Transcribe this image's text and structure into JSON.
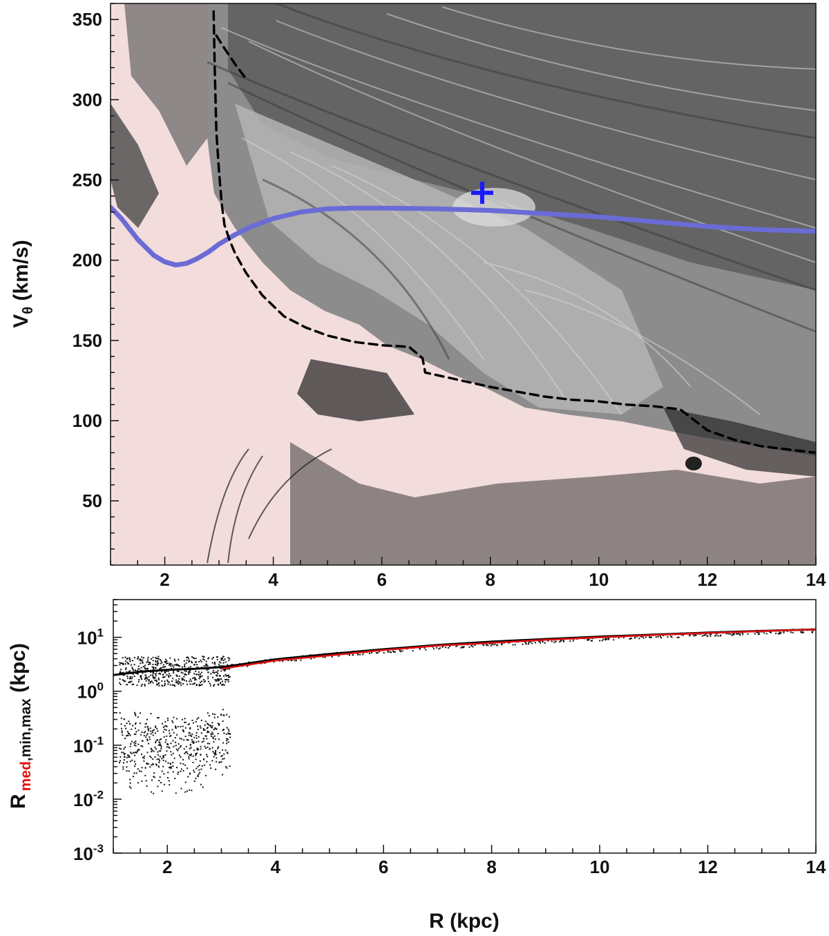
{
  "chart_data": [
    {
      "type": "scatter",
      "panel": "top",
      "xlabel": "",
      "ylabel": "V",
      "ylabel_sub": "θ",
      "ylabel_unit": " (km/s)",
      "xlim": [
        1,
        14
      ],
      "ylim": [
        10,
        360
      ],
      "x_ticks": [
        2,
        4,
        6,
        8,
        10,
        12,
        14
      ],
      "y_ticks": [
        50,
        100,
        150,
        200,
        250,
        300,
        350
      ],
      "background_color": "#f2dcdc",
      "series": [
        {
          "style": "solid",
          "color": "#6b6bd6",
          "x": [
            1.0,
            1.2,
            1.5,
            1.8,
            2.0,
            2.2,
            2.4,
            2.6,
            2.8,
            3.0,
            3.3,
            3.6,
            4.0,
            4.5,
            5.0,
            5.5,
            6.0,
            7.0,
            8.0,
            9.0,
            10.0,
            11.0,
            12.0,
            13.0,
            14.0
          ],
          "y": [
            233,
            226,
            213,
            203,
            199,
            197,
            198,
            201,
            205,
            210,
            216,
            221,
            226,
            230,
            232,
            232.5,
            232.5,
            232,
            231,
            229,
            227,
            224,
            221,
            219,
            218
          ]
        },
        {
          "style": "dashed",
          "color": "#000000",
          "x": [
            2.9,
            2.92,
            2.95,
            3.0,
            3.05,
            3.1,
            3.2,
            3.3,
            3.5,
            3.8,
            4.2,
            4.6,
            5.0,
            5.5,
            6.0,
            6.5,
            6.75,
            6.8,
            7.2,
            7.6,
            8.0,
            8.5,
            9.0,
            9.5,
            10.0,
            10.5,
            11.0,
            11.5,
            12.0,
            12.5,
            13.0,
            13.5,
            14.0
          ],
          "y": [
            355,
            320,
            280,
            255,
            235,
            222,
            212,
            204,
            192,
            178,
            165,
            158,
            153,
            149,
            147,
            146,
            139,
            130,
            127,
            124,
            121,
            118,
            115,
            113,
            112,
            110,
            109,
            107,
            94,
            88,
            84,
            82,
            80
          ]
        },
        {
          "style": "dashed",
          "color": "#000000",
          "x": [
            2.95,
            3.1,
            3.3,
            3.5
          ],
          "y": [
            340,
            332,
            322,
            313
          ]
        },
        {
          "style": "marker",
          "marker": "plus",
          "color": "#1a1aff",
          "x": [
            7.85
          ],
          "y": [
            242
          ]
        }
      ]
    },
    {
      "type": "scatter",
      "panel": "bottom",
      "xlabel": "R (kpc)",
      "ylabel_main": "R",
      "ylabel_sub_red": "med",
      "ylabel_sub_black": ",min,max",
      "ylabel_unit": " (kpc)",
      "xlim": [
        1,
        14
      ],
      "ylim": [
        0.001,
        50
      ],
      "yscale": "log",
      "x_ticks": [
        2,
        4,
        6,
        8,
        10,
        12,
        14
      ],
      "y_ticks": [
        {
          "base": "10",
          "exp": "1"
        },
        {
          "base": "10",
          "exp": "0"
        },
        {
          "base": "10",
          "exp": "-1"
        },
        {
          "base": "10",
          "exp": "-2"
        },
        {
          "base": "10",
          "exp": "-3"
        }
      ],
      "series": [
        {
          "style": "line",
          "color": "#000000",
          "x": [
            1.0,
            1.5,
            2.0,
            2.5,
            3.0,
            3.5,
            4.0,
            5.0,
            6.0,
            7.0,
            8.0,
            9.0,
            10.0,
            11.0,
            12.0,
            13.0,
            14.0
          ],
          "y": [
            2.0,
            2.3,
            2.5,
            2.6,
            2.8,
            3.3,
            3.9,
            4.9,
            6.0,
            7.2,
            8.3,
            9.3,
            10.3,
            11.2,
            12.2,
            13.1,
            14.0
          ]
        },
        {
          "style": "line",
          "color": "#e01010",
          "x": [
            3.0,
            4.0,
            5.0,
            6.0,
            7.0,
            8.0,
            9.0,
            10.0,
            11.0,
            12.0,
            13.0,
            14.0
          ],
          "y": [
            2.6,
            3.7,
            4.6,
            5.8,
            7.0,
            7.9,
            9.0,
            10.0,
            11.0,
            12.0,
            13.0,
            14.0
          ]
        }
      ]
    }
  ]
}
